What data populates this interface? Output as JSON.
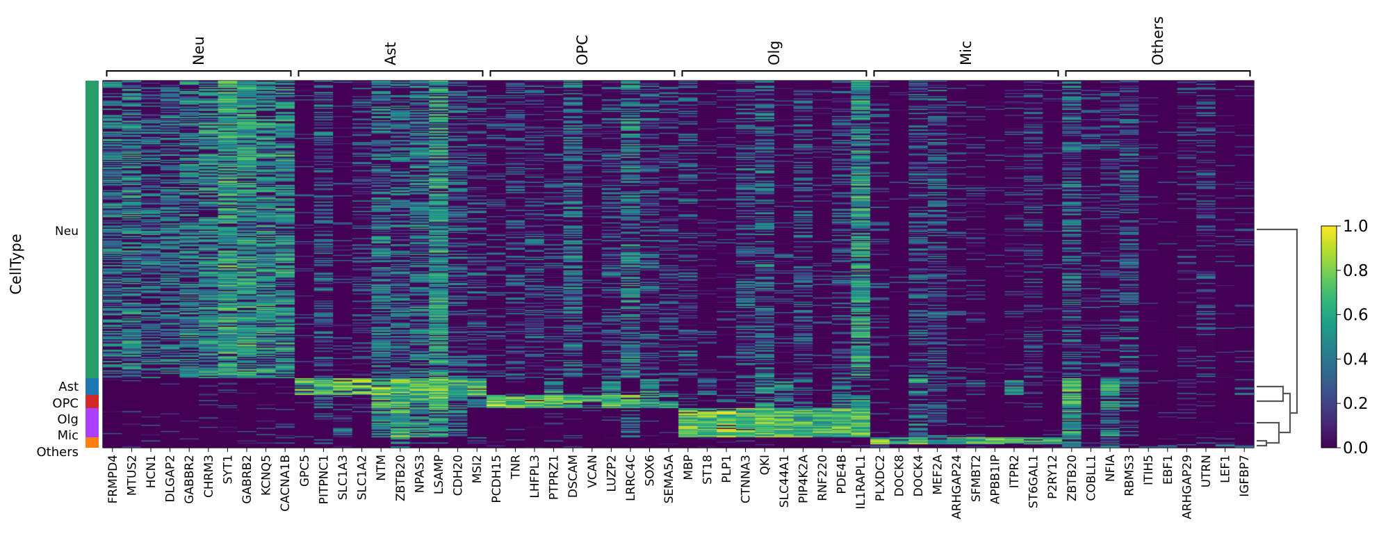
{
  "chart_data": {
    "type": "heatmap",
    "ylabel": "CellType",
    "row_groups": [
      {
        "name": "Neu",
        "color": "#279e68"
      },
      {
        "name": "Ast",
        "color": "#1f77b4"
      },
      {
        "name": "OPC",
        "color": "#d62728"
      },
      {
        "name": "Olg",
        "color": "#aa40fc"
      },
      {
        "name": "Mic",
        "color": "#ff7f0e"
      },
      {
        "name": "Others",
        "color": "#ff7f0e"
      }
    ],
    "gene_groups": [
      {
        "name": "Neu",
        "genes": [
          "FRMPD4",
          "MTUS2",
          "HCN1",
          "DLGAP2",
          "GABBR2",
          "CHRM3",
          "SYT1",
          "GABRB2",
          "KCNQ5",
          "CACNA1B"
        ]
      },
      {
        "name": "Ast",
        "genes": [
          "GPC5",
          "PITPNC1",
          "SLC1A3",
          "SLC1A2",
          "NTM",
          "ZBTB20",
          "NPAS3",
          "LSAMP",
          "CDH20",
          "MSI2"
        ]
      },
      {
        "name": "OPC",
        "genes": [
          "PCDH15",
          "TNR",
          "LHFPL3",
          "PTPRZ1",
          "DSCAM",
          "VCAN",
          "LUZP2",
          "LRRC4C",
          "SOX6",
          "SEMA5A"
        ]
      },
      {
        "name": "Olg",
        "genes": [
          "MBP",
          "ST18",
          "PLP1",
          "CTNNA3",
          "QKI",
          "SLC44A1",
          "PIP4K2A",
          "RNF220",
          "PDE4B",
          "IL1RAPL1"
        ]
      },
      {
        "name": "Mic",
        "genes": [
          "PLXDC2",
          "DOCK8",
          "DOCK4",
          "MEF2A",
          "ARHGAP24",
          "SFMBT2",
          "APBB1IP",
          "ITPR2",
          "ST6GAL1",
          "P2RY12"
        ]
      },
      {
        "name": "Others",
        "genes": [
          "ZBTB20",
          "COBLL1",
          "NFIA",
          "RBMS3",
          "ITIH5",
          "EBF1",
          "ARHGAP29",
          "UTRN",
          "LEF1",
          "IGFBP7"
        ]
      }
    ],
    "mean_expression": {
      "Neu": [
        0.4,
        0.45,
        0.35,
        0.4,
        0.45,
        0.5,
        0.6,
        0.55,
        0.5,
        0.5,
        0.05,
        0.3,
        0.05,
        0.2,
        0.4,
        0.35,
        0.4,
        0.55,
        0.3,
        0.25,
        0.15,
        0.25,
        0.25,
        0.2,
        0.4,
        0.1,
        0.25,
        0.45,
        0.3,
        0.2,
        0.25,
        0.1,
        0.05,
        0.3,
        0.35,
        0.1,
        0.3,
        0.1,
        0.25,
        0.55,
        0.15,
        0.02,
        0.3,
        0.35,
        0.1,
        0.1,
        0.02,
        0.1,
        0.25,
        0.02,
        0.35,
        0.15,
        0.2,
        0.3,
        0.02,
        0.02,
        0.1,
        0.2,
        0.02,
        0.05
      ],
      "Ast": [
        0.03,
        0.03,
        0.03,
        0.04,
        0.03,
        0.05,
        0.05,
        0.03,
        0.04,
        0.08,
        0.75,
        0.7,
        0.75,
        0.8,
        0.8,
        0.75,
        0.75,
        0.85,
        0.65,
        0.75,
        0.02,
        0.05,
        0.02,
        0.5,
        0.02,
        0.1,
        0.6,
        0.1,
        0.45,
        0.3,
        0.02,
        0.35,
        0.02,
        0.25,
        0.55,
        0.35,
        0.2,
        0.02,
        0.45,
        0.2,
        0.05,
        0.02,
        0.5,
        0.3,
        0.15,
        0.2,
        0.02,
        0.5,
        0.1,
        0.02,
        0.7,
        0.02,
        0.65,
        0.4,
        0.02,
        0.02,
        0.2,
        0.05,
        0.02,
        0.3
      ],
      "OPC": [
        0.03,
        0.02,
        0.03,
        0.03,
        0.04,
        0.05,
        0.05,
        0.03,
        0.03,
        0.05,
        0.05,
        0.4,
        0.2,
        0.3,
        0.7,
        0.7,
        0.6,
        0.75,
        0.45,
        0.5,
        0.85,
        0.7,
        0.8,
        0.75,
        0.7,
        0.6,
        0.7,
        0.75,
        0.6,
        0.55,
        0.1,
        0.05,
        0.2,
        0.2,
        0.5,
        0.35,
        0.2,
        0.05,
        0.5,
        0.5,
        0.05,
        0.05,
        0.35,
        0.3,
        0.1,
        0.05,
        0.02,
        0.05,
        0.05,
        0.02,
        0.7,
        0.05,
        0.5,
        0.35,
        0.02,
        0.02,
        0.05,
        0.05,
        0.02,
        0.02
      ],
      "Olg": [
        0.03,
        0.03,
        0.03,
        0.03,
        0.04,
        0.03,
        0.05,
        0.03,
        0.05,
        0.04,
        0.02,
        0.05,
        0.3,
        0.02,
        0.55,
        0.65,
        0.55,
        0.5,
        0.4,
        0.05,
        0.02,
        0.02,
        0.02,
        0.05,
        0.05,
        0.02,
        0.02,
        0.3,
        0.05,
        0.02,
        0.75,
        0.8,
        0.85,
        0.8,
        0.8,
        0.75,
        0.7,
        0.65,
        0.75,
        0.75,
        0.05,
        0.02,
        0.4,
        0.35,
        0.05,
        0.1,
        0.02,
        0.05,
        0.05,
        0.02,
        0.6,
        0.05,
        0.45,
        0.2,
        0.02,
        0.02,
        0.05,
        0.05,
        0.02,
        0.02
      ],
      "Mic": [
        0.03,
        0.03,
        0.03,
        0.03,
        0.03,
        0.03,
        0.04,
        0.03,
        0.03,
        0.03,
        0.02,
        0.2,
        0.02,
        0.05,
        0.05,
        0.4,
        0.05,
        0.2,
        0.02,
        0.3,
        0.02,
        0.02,
        0.02,
        0.02,
        0.05,
        0.02,
        0.02,
        0.05,
        0.02,
        0.02,
        0.02,
        0.02,
        0.02,
        0.05,
        0.3,
        0.05,
        0.05,
        0.02,
        0.2,
        0.05,
        0.75,
        0.7,
        0.7,
        0.65,
        0.7,
        0.65,
        0.75,
        0.7,
        0.65,
        0.7,
        0.5,
        0.02,
        0.4,
        0.05,
        0.02,
        0.02,
        0.05,
        0.2,
        0.02,
        0.02
      ],
      "Others": [
        0.02,
        0.02,
        0.02,
        0.02,
        0.02,
        0.02,
        0.02,
        0.02,
        0.02,
        0.02,
        0.02,
        0.05,
        0.02,
        0.02,
        0.05,
        0.3,
        0.05,
        0.1,
        0.02,
        0.05,
        0.02,
        0.02,
        0.02,
        0.02,
        0.02,
        0.02,
        0.02,
        0.02,
        0.02,
        0.02,
        0.02,
        0.02,
        0.02,
        0.02,
        0.1,
        0.02,
        0.02,
        0.02,
        0.05,
        0.02,
        0.1,
        0.02,
        0.1,
        0.1,
        0.02,
        0.02,
        0.02,
        0.05,
        0.02,
        0.02,
        0.5,
        0.3,
        0.3,
        0.3,
        0.3,
        0.3,
        0.3,
        0.4,
        0.3,
        0.4
      ]
    },
    "colorbar": {
      "colormap": "viridis",
      "range": [
        0.0,
        1.0
      ],
      "ticks": [
        "0.0",
        "0.2",
        "0.4",
        "0.6",
        "0.8",
        "1.0"
      ]
    },
    "dendrogram": "right",
    "grid": false
  }
}
